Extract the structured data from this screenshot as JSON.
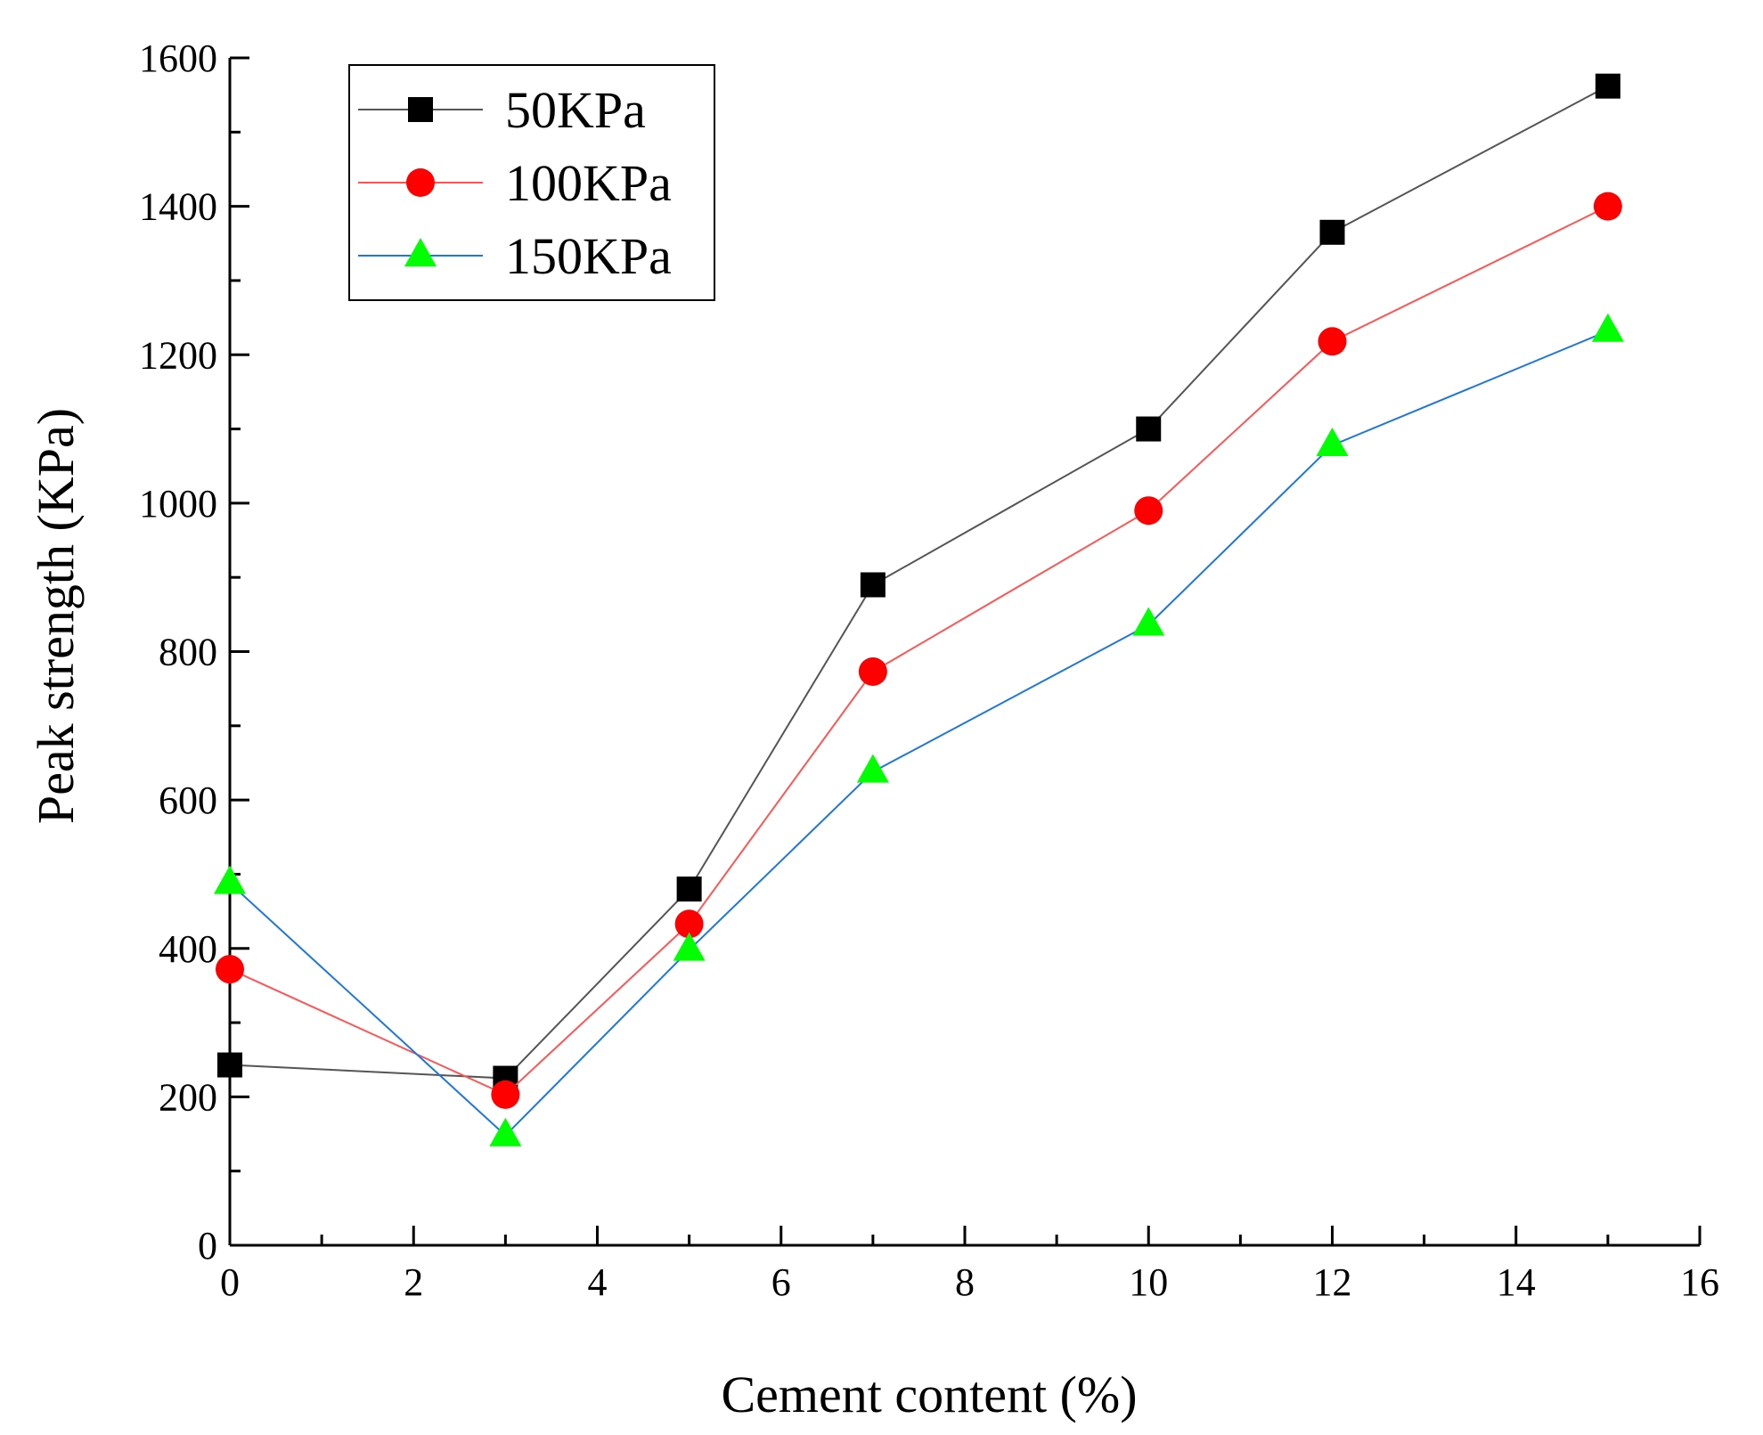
{
  "chart_data": {
    "type": "line",
    "title": "",
    "xlabel": "Cement content (%)",
    "ylabel": "Peak strength (KPa)",
    "xlim": [
      0,
      16
    ],
    "ylim": [
      0,
      1600
    ],
    "xticks": [
      0,
      2,
      4,
      6,
      8,
      10,
      12,
      14,
      16
    ],
    "yticks": [
      0,
      200,
      400,
      600,
      800,
      1000,
      1200,
      1400,
      1600
    ],
    "x": [
      0,
      3,
      5,
      7,
      10,
      12,
      15
    ],
    "legend_position": "top-left",
    "grid": false,
    "series": [
      {
        "name": "50KPa",
        "marker": "square",
        "marker_color": "#000000",
        "line_color": "#555555",
        "values": [
          243,
          225,
          480,
          890,
          1100,
          1365,
          1562
        ]
      },
      {
        "name": "100KPa",
        "marker": "circle",
        "marker_color": "#ff0000",
        "line_color": "#ff5555",
        "values": [
          372,
          203,
          433,
          773,
          990,
          1218,
          1400
        ]
      },
      {
        "name": "150KPa",
        "marker": "triangle",
        "marker_color": "#00ff00",
        "line_color": "#1e78dc",
        "values": [
          488,
          148,
          398,
          638,
          836,
          1078,
          1232
        ]
      }
    ]
  }
}
